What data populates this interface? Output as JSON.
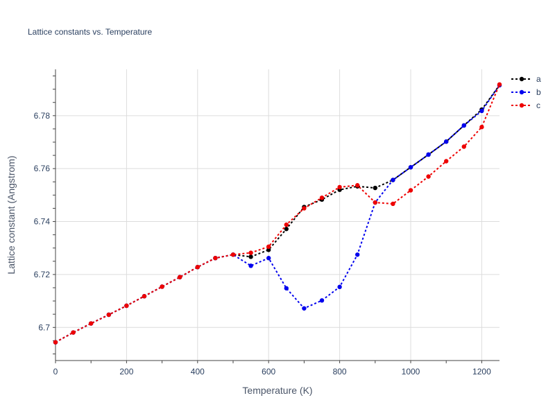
{
  "chart_data": {
    "type": "line",
    "title": "Lattice constants vs. Temperature",
    "xlabel": "Temperature (K)",
    "ylabel": "Lattice constant (Angstrom)",
    "xlim": [
      0,
      1250
    ],
    "ylim": [
      6.6875,
      6.7975
    ],
    "xticks": [
      0,
      200,
      400,
      600,
      800,
      1000,
      1200
    ],
    "yticks": [
      6.7,
      6.72,
      6.74,
      6.76,
      6.78
    ],
    "ytick_labels": [
      "6.7",
      "6.72",
      "6.74",
      "6.76",
      "6.78"
    ],
    "grid": true,
    "legend_position": "top-right",
    "x": [
      0,
      50,
      100,
      150,
      200,
      250,
      300,
      350,
      400,
      450,
      500,
      550,
      600,
      650,
      700,
      750,
      800,
      850,
      900,
      950,
      1000,
      1050,
      1100,
      1150,
      1200,
      1250
    ],
    "series": [
      {
        "name": "a",
        "color": "#000000",
        "values": [
          6.6944,
          6.6981,
          6.7015,
          6.7048,
          6.7082,
          6.7118,
          6.7154,
          6.719,
          6.7228,
          6.7262,
          6.7275,
          6.7267,
          6.7293,
          6.7372,
          6.7455,
          6.7483,
          6.752,
          6.7533,
          6.7527,
          6.7557,
          6.7605,
          6.7653,
          6.7702,
          6.7763,
          6.7823,
          6.7915
        ]
      },
      {
        "name": "b",
        "color": "#0000ee",
        "values": [
          6.6944,
          6.6981,
          6.7015,
          6.7048,
          6.7082,
          6.7118,
          6.7154,
          6.719,
          6.7228,
          6.7262,
          6.7275,
          6.7233,
          6.7262,
          6.7148,
          6.7072,
          6.7102,
          6.7153,
          6.7275,
          6.7472,
          6.7557,
          6.7605,
          6.7653,
          6.7702,
          6.7763,
          6.7818,
          6.7915
        ]
      },
      {
        "name": "c",
        "color": "#ee0000",
        "values": [
          6.6944,
          6.6981,
          6.7015,
          6.7048,
          6.7082,
          6.7118,
          6.7154,
          6.719,
          6.7228,
          6.7262,
          6.7275,
          6.7282,
          6.7305,
          6.7388,
          6.745,
          6.749,
          6.753,
          6.7537,
          6.7472,
          6.7467,
          6.7518,
          6.757,
          6.7628,
          6.7683,
          6.7757,
          6.7918
        ]
      }
    ]
  }
}
